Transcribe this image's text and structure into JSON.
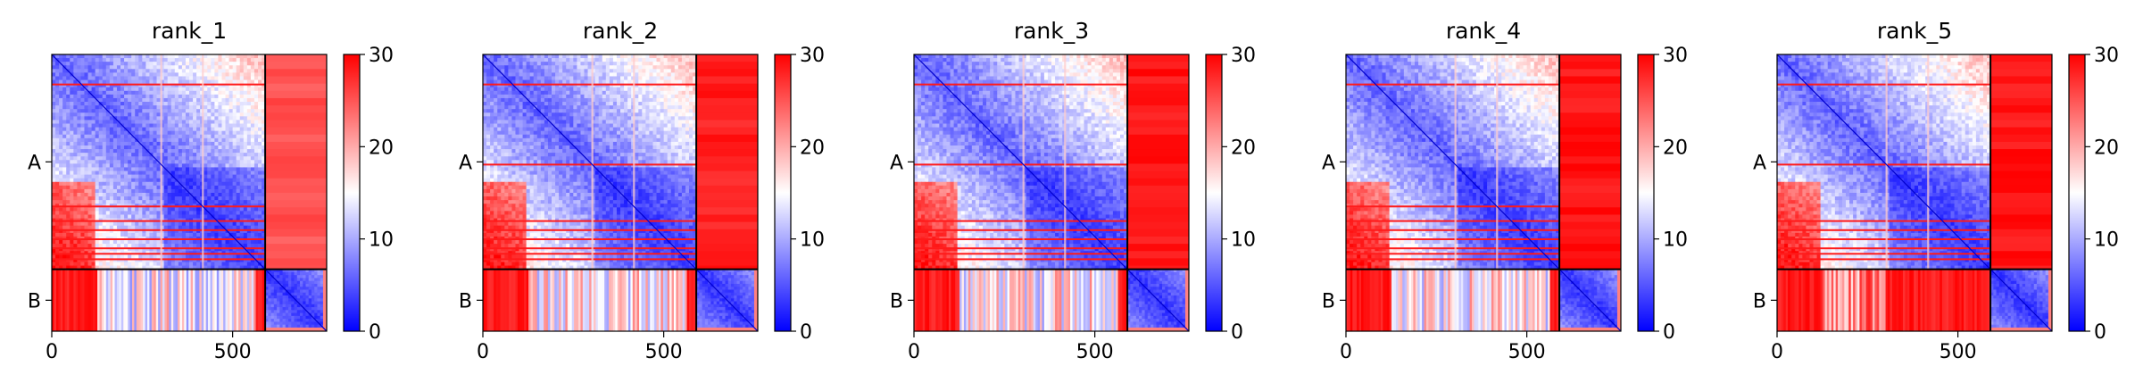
{
  "chart_data": [
    {
      "type": "heatmap",
      "title": "rank_1",
      "x_ticks": [
        0,
        500
      ],
      "y_categories": [
        "A",
        "B"
      ],
      "chain_boundary": 590,
      "total_length": 760,
      "colorbar": {
        "min": 0,
        "max": 30,
        "ticks": [
          0,
          10,
          20,
          30
        ],
        "colormap": [
          "#0000ff",
          "#ffffff",
          "#ff0000"
        ]
      },
      "features": {
        "offdiag_level": 0.88,
        "lowerleft_block": {
          "from": 0,
          "to": 590,
          "level": 0.28
        },
        "red_stripes": [
          80,
          415,
          455,
          480,
          505,
          530,
          545,
          560
        ]
      }
    },
    {
      "type": "heatmap",
      "title": "rank_2",
      "x_ticks": [
        0,
        500
      ],
      "y_categories": [
        "A",
        "B"
      ],
      "chain_boundary": 590,
      "total_length": 760,
      "colorbar": {
        "min": 0,
        "max": 30,
        "ticks": [
          0,
          10,
          20,
          30
        ],
        "colormap": [
          "#0000ff",
          "#ffffff",
          "#ff0000"
        ]
      },
      "features": {
        "offdiag_level": 0.98,
        "lowerleft_block": {
          "from": 0,
          "to": 590,
          "level": 0.3
        },
        "red_stripes": [
          80,
          300,
          455,
          480,
          505,
          530,
          545,
          560
        ]
      }
    },
    {
      "type": "heatmap",
      "title": "rank_3",
      "x_ticks": [
        0,
        500
      ],
      "y_categories": [
        "A",
        "B"
      ],
      "chain_boundary": 590,
      "total_length": 760,
      "colorbar": {
        "min": 0,
        "max": 30,
        "ticks": [
          0,
          10,
          20,
          30
        ],
        "colormap": [
          "#0000ff",
          "#ffffff",
          "#ff0000"
        ]
      },
      "features": {
        "offdiag_level": 1.0,
        "lowerleft_block": {
          "from": 0,
          "to": 590,
          "level": 0.3
        },
        "red_stripes": [
          80,
          300,
          455,
          480,
          505,
          530,
          545,
          560
        ]
      }
    },
    {
      "type": "heatmap",
      "title": "rank_4",
      "x_ticks": [
        0,
        500
      ],
      "y_categories": [
        "A",
        "B"
      ],
      "chain_boundary": 590,
      "total_length": 760,
      "colorbar": {
        "min": 0,
        "max": 30,
        "ticks": [
          0,
          10,
          20,
          30
        ],
        "colormap": [
          "#0000ff",
          "#ffffff",
          "#ff0000"
        ]
      },
      "features": {
        "offdiag_level": 1.0,
        "lowerleft_block": {
          "from": 0,
          "to": 590,
          "level": 0.3
        },
        "red_stripes": [
          80,
          415,
          455,
          480,
          505,
          530,
          545,
          560
        ]
      }
    },
    {
      "type": "heatmap",
      "title": "rank_5",
      "x_ticks": [
        0,
        500
      ],
      "y_categories": [
        "A",
        "B"
      ],
      "chain_boundary": 590,
      "total_length": 760,
      "colorbar": {
        "min": 0,
        "max": 30,
        "ticks": [
          0,
          10,
          20,
          30
        ],
        "colormap": [
          "#0000ff",
          "#ffffff",
          "#ff0000"
        ]
      },
      "features": {
        "offdiag_level": 1.0,
        "lowerleft_block": {
          "from": 0,
          "to": 300,
          "level": 0.55
        },
        "red_stripes": [
          80,
          300,
          455,
          480,
          505,
          530,
          545,
          560
        ]
      }
    }
  ]
}
